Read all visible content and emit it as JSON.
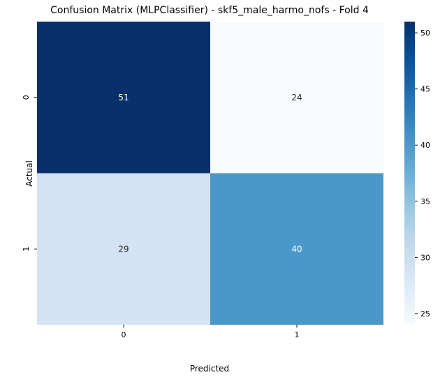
{
  "chart_data": {
    "type": "heatmap",
    "title": "Confusion Matrix (MLPClassifier) - skf5_male_harmo_nofs - Fold 4",
    "xlabel": "Predicted",
    "ylabel": "Actual",
    "x_categories": [
      "0",
      "1"
    ],
    "y_categories": [
      "0",
      "1"
    ],
    "matrix": [
      [
        51,
        24
      ],
      [
        29,
        40
      ]
    ],
    "annotations": true,
    "colormap": "Blues",
    "colorbar": {
      "range": [
        24,
        51
      ],
      "ticks": [
        25,
        30,
        35,
        40,
        45,
        50
      ]
    },
    "cell_colors": [
      [
        "#08306b",
        "#f7fbff"
      ],
      [
        "#d3e3f3",
        "#4a98c9"
      ]
    ],
    "annotation_colors": [
      [
        "#ffffff",
        "#262626"
      ],
      [
        "#262626",
        "#ffffff"
      ]
    ]
  }
}
